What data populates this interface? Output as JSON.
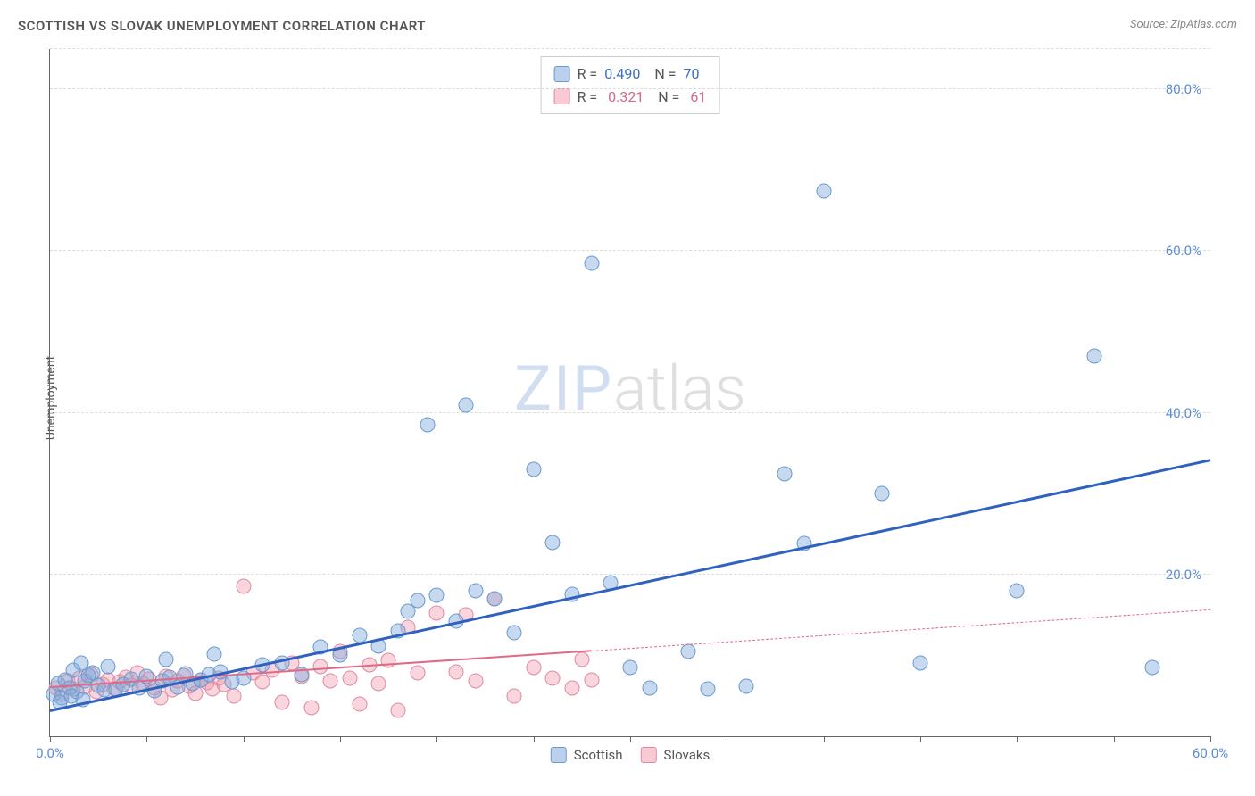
{
  "title": "SCOTTISH VS SLOVAK UNEMPLOYMENT CORRELATION CHART",
  "source": "Source: ZipAtlas.com",
  "y_axis_label": "Unemployment",
  "watermark": {
    "part1": "ZIP",
    "part2": "atlas"
  },
  "chart": {
    "type": "scatter",
    "xlim": [
      0,
      60
    ],
    "ylim": [
      0,
      85
    ],
    "y_ticks": [
      20,
      40,
      60,
      80
    ],
    "y_tick_labels": [
      "20.0%",
      "40.0%",
      "60.0%",
      "80.0%"
    ],
    "x_ticks": [
      0,
      5,
      10,
      15,
      20,
      25,
      30,
      35,
      40,
      45,
      50,
      55,
      60
    ],
    "x_tick_labels": {
      "0": "0.0%",
      "60": "60.0%"
    },
    "background_color": "#ffffff",
    "grid_color": "#dddddd",
    "axis_color": "#666666",
    "tick_label_color": "#5b8dd6",
    "point_radius": 8.5,
    "series": {
      "scottish": {
        "label": "Scottish",
        "color_fill": "rgba(130,170,220,0.45)",
        "color_stroke": "#6a9ad0",
        "trend_color": "#2f62c0",
        "trend": {
          "x1": 0,
          "y1": 3.0,
          "x2": 60,
          "y2": 34.0,
          "dashed": false
        },
        "R": "0.490",
        "N": "70",
        "points": [
          [
            0.2,
            5.2
          ],
          [
            0.4,
            6.5
          ],
          [
            0.6,
            4.8
          ],
          [
            0.8,
            7.0
          ],
          [
            1.0,
            6.0
          ],
          [
            1.2,
            8.2
          ],
          [
            1.4,
            5.5
          ],
          [
            1.6,
            9.0
          ],
          [
            1.8,
            6.8
          ],
          [
            2.0,
            7.5
          ],
          [
            0.5,
            4.2
          ],
          [
            1.1,
            5.0
          ],
          [
            1.7,
            4.5
          ],
          [
            2.2,
            7.8
          ],
          [
            2.5,
            6.3
          ],
          [
            2.8,
            5.7
          ],
          [
            3.0,
            8.6
          ],
          [
            3.4,
            5.9
          ],
          [
            3.8,
            6.4
          ],
          [
            4.2,
            7.1
          ],
          [
            4.6,
            6.0
          ],
          [
            5.0,
            7.4
          ],
          [
            5.4,
            5.6
          ],
          [
            5.8,
            6.9
          ],
          [
            6.2,
            7.3
          ],
          [
            6.6,
            6.1
          ],
          [
            7.0,
            7.7
          ],
          [
            7.4,
            6.5
          ],
          [
            7.8,
            7.0
          ],
          [
            8.2,
            7.6
          ],
          [
            8.8,
            8.0
          ],
          [
            9.4,
            6.7
          ],
          [
            10.0,
            7.2
          ],
          [
            6.0,
            9.5
          ],
          [
            8.5,
            10.2
          ],
          [
            11.0,
            8.8
          ],
          [
            12.0,
            9.0
          ],
          [
            13.0,
            7.6
          ],
          [
            14.0,
            11.0
          ],
          [
            15.0,
            10.0
          ],
          [
            16.0,
            12.5
          ],
          [
            17.0,
            11.2
          ],
          [
            18.0,
            13.0
          ],
          [
            18.5,
            15.5
          ],
          [
            19.0,
            16.8
          ],
          [
            19.5,
            38.5
          ],
          [
            20.0,
            17.4
          ],
          [
            21.0,
            14.2
          ],
          [
            21.5,
            41.0
          ],
          [
            22.0,
            18.0
          ],
          [
            23.0,
            17.0
          ],
          [
            24.0,
            12.8
          ],
          [
            25.0,
            33.0
          ],
          [
            26.0,
            24.0
          ],
          [
            27.0,
            17.5
          ],
          [
            28.0,
            58.5
          ],
          [
            29.0,
            19.0
          ],
          [
            30.0,
            8.5
          ],
          [
            31.0,
            6.0
          ],
          [
            33.0,
            10.5
          ],
          [
            34.0,
            5.8
          ],
          [
            36.0,
            6.2
          ],
          [
            38.0,
            32.5
          ],
          [
            39.0,
            23.8
          ],
          [
            40.0,
            67.5
          ],
          [
            43.0,
            30.0
          ],
          [
            45.0,
            9.0
          ],
          [
            50.0,
            18.0
          ],
          [
            54.0,
            47.0
          ],
          [
            57.0,
            8.5
          ]
        ]
      },
      "slovaks": {
        "label": "Slovaks",
        "color_fill": "rgba(240,150,170,0.4)",
        "color_stroke": "#e08aa0",
        "trend_color": "#e06a85",
        "trend_solid": {
          "x1": 0,
          "y1": 6.0,
          "x2": 28,
          "y2": 10.5
        },
        "trend_dashed": {
          "x1": 28,
          "y1": 10.5,
          "x2": 60,
          "y2": 15.6
        },
        "R": "0.321",
        "N": "61",
        "points": [
          [
            0.3,
            6.0
          ],
          [
            0.6,
            5.2
          ],
          [
            0.9,
            6.8
          ],
          [
            1.2,
            5.8
          ],
          [
            1.5,
            7.2
          ],
          [
            1.8,
            6.1
          ],
          [
            2.1,
            7.6
          ],
          [
            2.4,
            5.5
          ],
          [
            2.7,
            6.4
          ],
          [
            3.0,
            7.0
          ],
          [
            3.3,
            5.9
          ],
          [
            3.6,
            6.7
          ],
          [
            3.9,
            7.3
          ],
          [
            4.2,
            6.3
          ],
          [
            4.5,
            7.8
          ],
          [
            4.8,
            6.5
          ],
          [
            5.1,
            7.1
          ],
          [
            5.4,
            6.0
          ],
          [
            5.7,
            4.8
          ],
          [
            6.0,
            7.4
          ],
          [
            6.3,
            5.7
          ],
          [
            6.6,
            6.9
          ],
          [
            6.9,
            7.5
          ],
          [
            7.2,
            6.2
          ],
          [
            7.5,
            5.3
          ],
          [
            7.8,
            7.0
          ],
          [
            8.1,
            6.6
          ],
          [
            8.4,
            5.8
          ],
          [
            8.7,
            7.2
          ],
          [
            9.0,
            6.4
          ],
          [
            9.5,
            5.0
          ],
          [
            10.0,
            18.5
          ],
          [
            10.5,
            7.8
          ],
          [
            11.0,
            6.7
          ],
          [
            11.5,
            8.2
          ],
          [
            12.0,
            4.2
          ],
          [
            12.5,
            9.0
          ],
          [
            13.0,
            7.4
          ],
          [
            13.5,
            3.5
          ],
          [
            14.0,
            8.6
          ],
          [
            14.5,
            6.9
          ],
          [
            15.0,
            10.5
          ],
          [
            15.5,
            7.2
          ],
          [
            16.0,
            4.0
          ],
          [
            16.5,
            8.8
          ],
          [
            17.0,
            6.5
          ],
          [
            17.5,
            9.4
          ],
          [
            18.0,
            3.2
          ],
          [
            18.5,
            13.5
          ],
          [
            19.0,
            7.8
          ],
          [
            20.0,
            15.2
          ],
          [
            21.0,
            8.0
          ],
          [
            21.5,
            15.0
          ],
          [
            22.0,
            6.8
          ],
          [
            23.0,
            17.0
          ],
          [
            24.0,
            5.0
          ],
          [
            25.0,
            8.5
          ],
          [
            26.0,
            7.2
          ],
          [
            27.0,
            6.0
          ],
          [
            27.5,
            9.5
          ],
          [
            28.0,
            7.0
          ]
        ]
      }
    }
  },
  "legend_bottom": [
    {
      "label": "Scottish",
      "swatch": "blue"
    },
    {
      "label": "Slovaks",
      "swatch": "pink"
    }
  ]
}
